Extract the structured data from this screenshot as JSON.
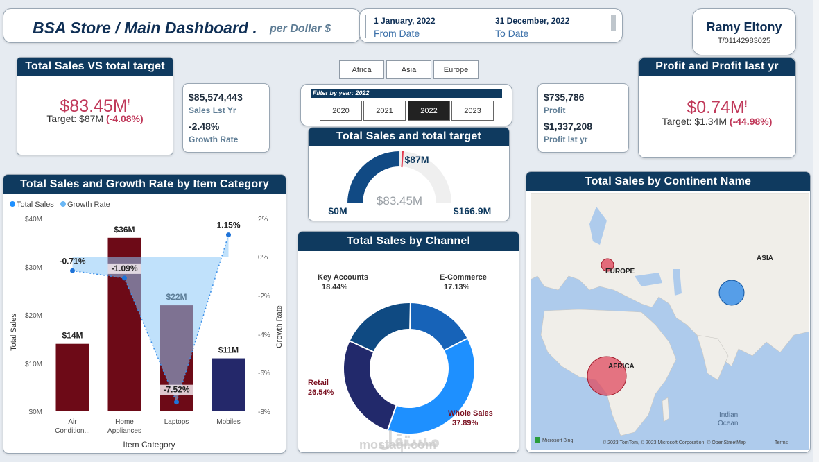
{
  "header": {
    "title": "BSA Store / Main Dashboard .",
    "subtitle": "per Dollar $",
    "from_value": "1 January, 2022",
    "from_label": "From Date",
    "to_value": "31 December, 2022",
    "to_label": "To Date",
    "user_name": "Ramy Eltony",
    "user_phone": "T/01142983025"
  },
  "continent_slicer": [
    "Africa",
    "Asia",
    "Europe"
  ],
  "year_filter": {
    "title": "Filter by year: 2022",
    "years": [
      "2020",
      "2021",
      "2022",
      "2023"
    ],
    "selected": "2022"
  },
  "sales_target_card": {
    "title": "Total Sales VS total target",
    "value": "$83.45M",
    "flag": "!",
    "target_text": "Target: $87M",
    "delta": "(-4.08%)"
  },
  "sales_last_year": {
    "value": "$85,574,443",
    "label": "Sales Lst Yr",
    "growth_value": "-2.48%",
    "growth_label": "Growth Rate"
  },
  "profit_stats": {
    "profit_value": "$735,786",
    "profit_label": "Profit",
    "last_value": "$1,337,208",
    "last_label": "Profit lst yr"
  },
  "profit_card": {
    "title": "Profit and Profit last yr",
    "value": "$0.74M",
    "flag": "!",
    "target_text": "Target: $1.34M",
    "delta": "(-44.98%)"
  },
  "gauge": {
    "title": "Total Sales and total target",
    "min_label": "$0M",
    "max_label": "$166.9M",
    "target_label": "$87M",
    "value_label": "$83.45M",
    "min": 0,
    "max": 166.9,
    "value": 83.45,
    "target": 87
  },
  "category_chart": {
    "title": "Total Sales and Growth Rate by Item Category",
    "legend": [
      "Total Sales",
      "Growth Rate"
    ],
    "y_left_ticks": [
      "$40M",
      "$30M",
      "$20M",
      "$10M",
      "$0M"
    ],
    "y_right_ticks": [
      "2%",
      "0%",
      "-2%",
      "-4%",
      "-6%",
      "-8%"
    ],
    "ylabel_left": "Total Sales",
    "ylabel_right": "Growth Rate",
    "xlabel": "Item Category"
  },
  "chart_data": [
    {
      "type": "bar",
      "title": "Total Sales and Growth Rate by Item Category",
      "categories": [
        "Air Condition...",
        "Home Appliances",
        "Laptops",
        "Mobiles"
      ],
      "series": [
        {
          "name": "Total Sales",
          "values": [
            14,
            36,
            22,
            11
          ],
          "labels": [
            "$14M",
            "$36M",
            "$22M",
            "$11M"
          ]
        },
        {
          "name": "Growth Rate",
          "values": [
            -0.71,
            -1.09,
            -7.52,
            1.15
          ],
          "labels": [
            "-0.71%",
            "-1.09%",
            "-7.52%",
            "1.15%"
          ]
        }
      ],
      "xlabel": "Item Category",
      "ylabel": "Total Sales",
      "ylim": [
        0,
        40
      ],
      "y2label": "Growth Rate",
      "y2lim": [
        -8,
        2
      ],
      "colors": [
        "#6d0a17",
        "#6d0a17",
        "#6d0a17",
        "#24286a"
      ]
    },
    {
      "type": "pie",
      "title": "Total Sales by Channel",
      "categories": [
        "E-Commerce",
        "Whole Sales",
        "Retail",
        "Key Accounts"
      ],
      "values": [
        17.13,
        37.89,
        26.54,
        18.44
      ],
      "labels": [
        "17.13%",
        "37.89%",
        "26.54%",
        "18.44%"
      ],
      "colors": [
        "#1763b8",
        "#1e90ff",
        "#22296b",
        "#0f4a82"
      ]
    }
  ],
  "channel_chart": {
    "title": "Total Sales by Channel"
  },
  "map": {
    "title": "Total Sales by Continent Name",
    "labels": [
      "EUROPE",
      "ASIA",
      "AFRICA"
    ],
    "ocean": "Indian\nOcean",
    "bing": "Microsoft Bing",
    "copyright": "© 2023 TomTom, © 2023 Microsoft Corporation, © OpenStreetMap",
    "terms": "Terms"
  },
  "watermark": {
    "arabic": "مستقل",
    "latin": "mostaql.com"
  },
  "colors": {
    "header_bg": "#0f3a5f",
    "accent_red": "#c0395a",
    "dark_red": "#6d0a17",
    "navy": "#24286a",
    "blue": "#1e90ff"
  }
}
